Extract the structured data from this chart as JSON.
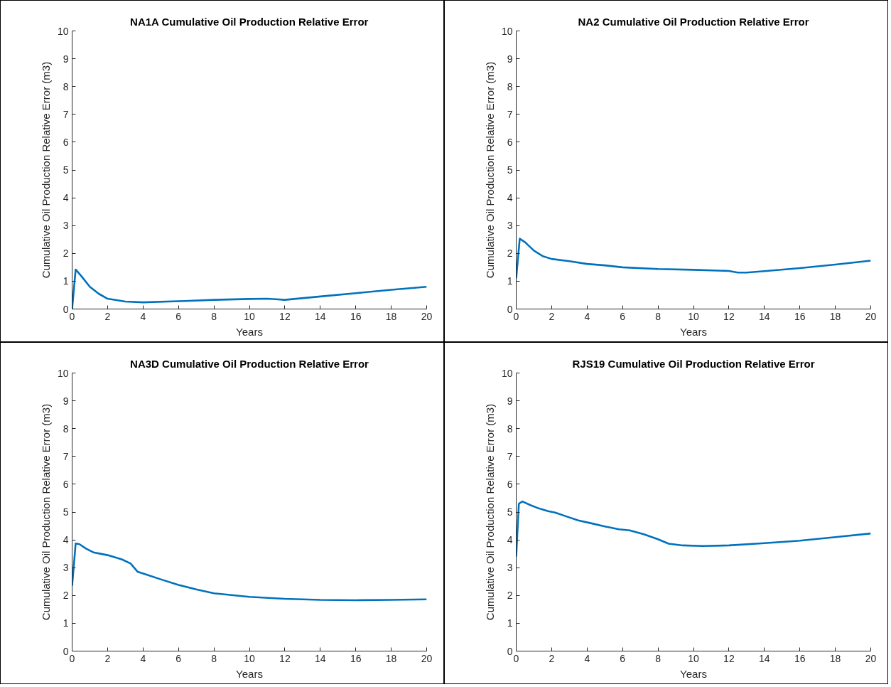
{
  "chart_data": [
    {
      "type": "line",
      "title": "NA1A Cumulative Oil Production Relative Error",
      "xlabel": "Years",
      "ylabel": "Cumulative Oil Production Relative Error (m3)",
      "xlim": [
        0,
        20
      ],
      "ylim": [
        0,
        10
      ],
      "xticks": [
        0,
        2,
        4,
        6,
        8,
        10,
        12,
        14,
        16,
        18,
        20
      ],
      "yticks": [
        0,
        1,
        2,
        3,
        4,
        5,
        6,
        7,
        8,
        9,
        10
      ],
      "grid": false,
      "series": [
        {
          "color": "#0072bd",
          "x": [
            0,
            0.2,
            0.5,
            1,
            1.5,
            2,
            3,
            4,
            6,
            8,
            10,
            11,
            11.5,
            12,
            14,
            16,
            18,
            20
          ],
          "values": [
            0,
            1.42,
            1.2,
            0.8,
            0.55,
            0.37,
            0.27,
            0.24,
            0.28,
            0.33,
            0.36,
            0.37,
            0.35,
            0.33,
            0.45,
            0.57,
            0.69,
            0.8
          ]
        }
      ]
    },
    {
      "type": "line",
      "title": "NA2 Cumulative Oil Production Relative Error",
      "xlabel": "Years",
      "ylabel": "Cumulative Oil Production Relative Error (m3)",
      "xlim": [
        0,
        20
      ],
      "ylim": [
        0,
        10
      ],
      "xticks": [
        0,
        2,
        4,
        6,
        8,
        10,
        12,
        14,
        16,
        18,
        20
      ],
      "yticks": [
        0,
        1,
        2,
        3,
        4,
        5,
        6,
        7,
        8,
        9,
        10
      ],
      "grid": false,
      "series": [
        {
          "color": "#0072bd",
          "x": [
            0,
            0.2,
            0.5,
            1,
            1.5,
            2,
            3,
            4,
            5,
            6,
            8,
            10,
            12,
            12.5,
            13,
            14,
            16,
            18,
            20
          ],
          "values": [
            1.1,
            2.53,
            2.4,
            2.1,
            1.9,
            1.8,
            1.72,
            1.62,
            1.57,
            1.5,
            1.44,
            1.41,
            1.37,
            1.31,
            1.31,
            1.36,
            1.47,
            1.6,
            1.74
          ]
        }
      ]
    },
    {
      "type": "line",
      "title": "NA3D Cumulative Oil Production Relative Error",
      "xlabel": "Years",
      "ylabel": "Cumulative Oil Production Relative Error (m3)",
      "xlim": [
        0,
        20
      ],
      "ylim": [
        0,
        10
      ],
      "xticks": [
        0,
        2,
        4,
        6,
        8,
        10,
        12,
        14,
        16,
        18,
        20
      ],
      "yticks": [
        0,
        1,
        2,
        3,
        4,
        5,
        6,
        7,
        8,
        9,
        10
      ],
      "grid": false,
      "series": [
        {
          "color": "#0072bd",
          "x": [
            0,
            0.2,
            0.4,
            0.8,
            1.2,
            1.6,
            2,
            2.8,
            3.3,
            3.7,
            4.2,
            5,
            6,
            7,
            8,
            10,
            12,
            14,
            16,
            18,
            20
          ],
          "values": [
            2.35,
            3.87,
            3.85,
            3.68,
            3.55,
            3.5,
            3.45,
            3.3,
            3.15,
            2.85,
            2.75,
            2.58,
            2.38,
            2.22,
            2.08,
            1.95,
            1.88,
            1.84,
            1.83,
            1.84,
            1.86
          ]
        }
      ]
    },
    {
      "type": "line",
      "title": "RJS19 Cumulative Oil Production Relative Error",
      "xlabel": "Years",
      "ylabel": "Cumulative Oil Production Relative Error (m3)",
      "xlim": [
        0,
        20
      ],
      "ylim": [
        0,
        10
      ],
      "xticks": [
        0,
        2,
        4,
        6,
        8,
        10,
        12,
        14,
        16,
        18,
        20
      ],
      "yticks": [
        0,
        1,
        2,
        3,
        4,
        5,
        6,
        7,
        8,
        9,
        10
      ],
      "grid": false,
      "series": [
        {
          "color": "#0072bd",
          "x": [
            0,
            0.15,
            0.35,
            0.8,
            1.2,
            1.8,
            2.2,
            2.8,
            3.5,
            4.2,
            5,
            5.8,
            6.4,
            7.2,
            8,
            8.6,
            9.4,
            10.5,
            12,
            14,
            16,
            18,
            20
          ],
          "values": [
            3.4,
            5.3,
            5.38,
            5.25,
            5.15,
            5.03,
            4.98,
            4.85,
            4.7,
            4.6,
            4.48,
            4.38,
            4.34,
            4.2,
            4.02,
            3.86,
            3.8,
            3.78,
            3.8,
            3.88,
            3.97,
            4.1,
            4.23
          ]
        }
      ]
    }
  ]
}
